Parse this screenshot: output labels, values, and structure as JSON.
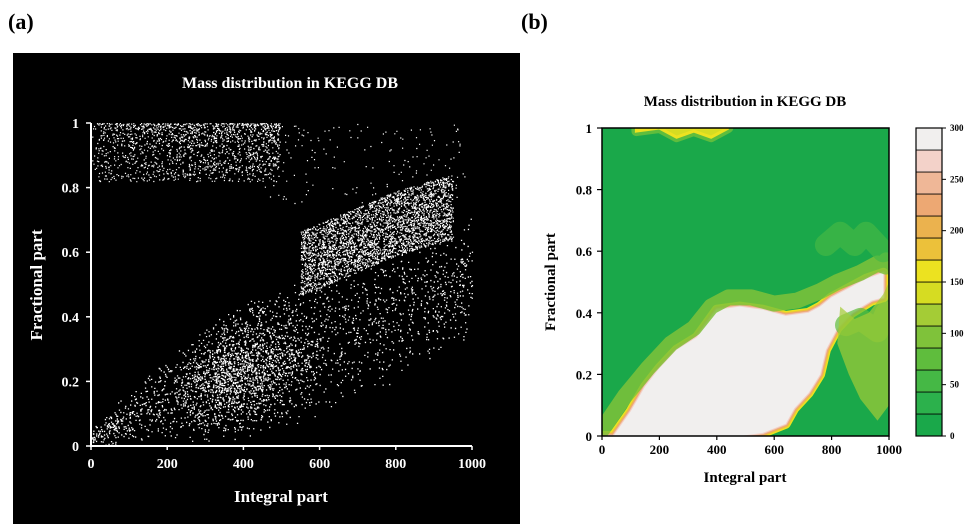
{
  "panels": {
    "a_label": "(a)",
    "b_label": "(b)"
  },
  "chart_data": [
    {
      "type": "scatter",
      "title": "Mass distribution in KEGG DB",
      "xlabel": "Integral part",
      "ylabel": "Fractional part",
      "xlim": [
        0,
        1000
      ],
      "ylim": [
        0,
        1
      ],
      "xticks": [
        "0",
        "200",
        "400",
        "600",
        "800",
        "1000"
      ],
      "yticks": [
        "0",
        "0.2",
        "0.4",
        "0.6",
        "0.8",
        "1"
      ],
      "background": "#000000",
      "point_color": "#ffffff",
      "grid": false,
      "dense_band": {
        "lower_edge": [
          [
            0,
            0.0
          ],
          [
            200,
            0.0
          ],
          [
            400,
            0.02
          ],
          [
            600,
            0.08
          ],
          [
            800,
            0.2
          ],
          [
            1000,
            0.3
          ]
        ],
        "upper_edge": [
          [
            0,
            0.05
          ],
          [
            200,
            0.3
          ],
          [
            400,
            0.45
          ],
          [
            600,
            0.55
          ],
          [
            800,
            0.65
          ],
          [
            1000,
            0.72
          ]
        ]
      },
      "top_cluster": {
        "x_range": [
          0,
          450
        ],
        "y_range": [
          0.82,
          1.0
        ]
      }
    },
    {
      "type": "heatmap",
      "title": "Mass distribution in KEGG DB",
      "xlabel": "Integral part",
      "ylabel": "Fractional part",
      "xlim": [
        0,
        1000
      ],
      "ylim": [
        0,
        1
      ],
      "xticks": [
        "0",
        "200",
        "400",
        "600",
        "800",
        "1000"
      ],
      "yticks": [
        "0",
        "0.2",
        "0.4",
        "0.6",
        "0.8",
        "1"
      ],
      "colorbar": {
        "range": [
          0,
          300
        ],
        "ticks": [
          "0",
          "50",
          "100",
          "150",
          "200",
          "250",
          "300"
        ],
        "levels": [
          "#1aa84a",
          "#2cb14c",
          "#45b845",
          "#5fbd3d",
          "#7fc23a",
          "#a4cc36",
          "#d6dc22",
          "#ece220",
          "#ecc13a",
          "#ebb24e",
          "#eda873",
          "#efb797",
          "#f3d2c9",
          "#f1efee"
        ]
      },
      "regions": [
        {
          "level": 13,
          "x": [
            40,
            100,
            150,
            200,
            260,
            330,
            400,
            480,
            560,
            640,
            720,
            760,
            800,
            860,
            920,
            980,
            980,
            940,
            870,
            820,
            780,
            760,
            720,
            670,
            640,
            560,
            480,
            400,
            0,
            0
          ],
          "y": [
            0,
            0.08,
            0.16,
            0.22,
            0.28,
            0.32,
            0.41,
            0.42,
            0.41,
            0.39,
            0.4,
            0.42,
            0.45,
            0.48,
            0.51,
            0.53,
            0.45,
            0.44,
            0.4,
            0.35,
            0.28,
            0.2,
            0.14,
            0.09,
            0.04,
            0.01,
            0.0,
            0,
            0,
            0
          ]
        },
        {
          "level": 7,
          "x": [
            0,
            80,
            160,
            240,
            320,
            380,
            440,
            520,
            600,
            680,
            760,
            820,
            900,
            960,
            990,
            990
          ],
          "y": [
            0.02,
            0.13,
            0.22,
            0.3,
            0.35,
            0.42,
            0.45,
            0.45,
            0.43,
            0.44,
            0.47,
            0.5,
            0.53,
            0.56,
            0.55,
            0.57
          ]
        },
        {
          "level": 7,
          "x": [
            120,
            200,
            260,
            320,
            380,
            440
          ],
          "y": [
            0.99,
            1.0,
            0.97,
            0.99,
            0.97,
            1.0
          ]
        },
        {
          "level": 5,
          "x": [
            850,
            900,
            960,
            990
          ],
          "y": [
            0.36,
            0.38,
            0.34,
            0.4
          ]
        },
        {
          "level": 4,
          "x": [
            780,
            830,
            880,
            920,
            980
          ],
          "y": [
            0.62,
            0.66,
            0.62,
            0.66,
            0.6
          ]
        }
      ]
    }
  ]
}
